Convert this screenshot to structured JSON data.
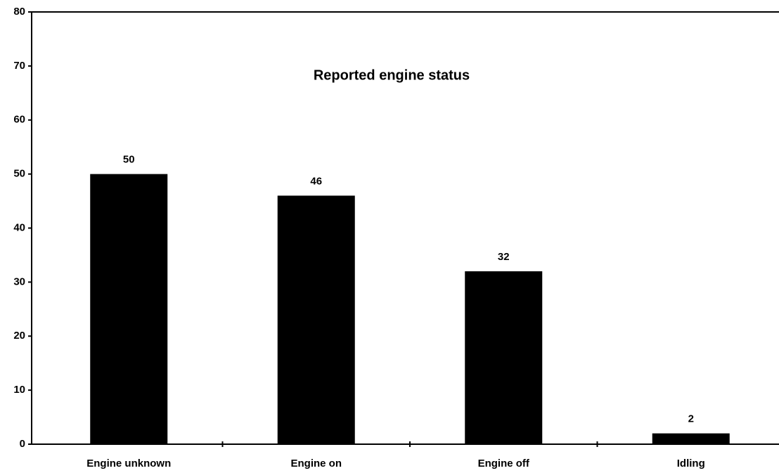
{
  "chart_data": {
    "type": "bar",
    "title": "Reported engine status",
    "categories": [
      "Engine unknown",
      "Engine on",
      "Engine off",
      "Idling"
    ],
    "values": [
      50,
      46,
      32,
      2
    ],
    "color": "#000000",
    "ylim": [
      0,
      80
    ],
    "yticks": [
      0,
      10,
      20,
      30,
      40,
      50,
      60,
      70,
      80
    ]
  }
}
